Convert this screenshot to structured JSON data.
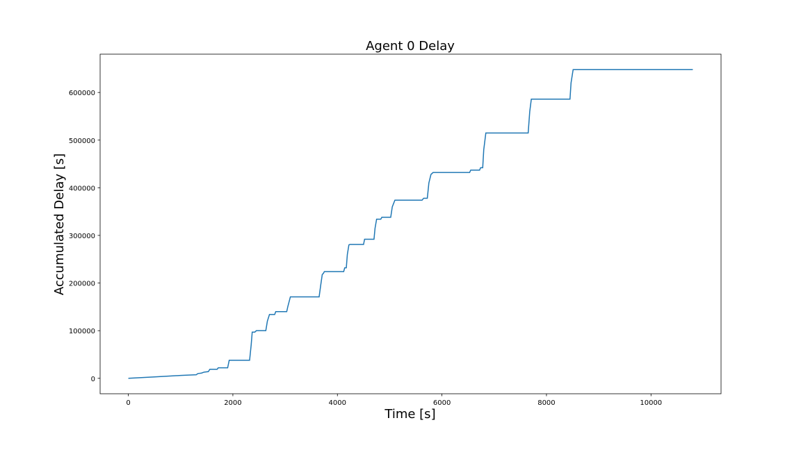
{
  "chart_data": {
    "type": "line",
    "title": "Agent 0 Delay",
    "xlabel": "Time [s]",
    "ylabel": "Accumulated Delay [s]",
    "x": [
      0,
      500,
      1000,
      1300,
      1330,
      1400,
      1450,
      1530,
      1560,
      1700,
      1720,
      1900,
      1930,
      2320,
      2350,
      2370,
      2420,
      2450,
      2630,
      2660,
      2700,
      2800,
      2820,
      3030,
      3050,
      3100,
      3650,
      3680,
      3710,
      3730,
      3750,
      4120,
      4140,
      4170,
      4190,
      4220,
      4240,
      4500,
      4520,
      4700,
      4720,
      4750,
      4830,
      4850,
      5020,
      5050,
      5100,
      5620,
      5650,
      5720,
      5750,
      5790,
      5830,
      6530,
      6550,
      6720,
      6740,
      6780,
      6800,
      6840,
      7650,
      7680,
      7710,
      8450,
      8470,
      8510,
      10800
    ],
    "series": [
      {
        "name": "Agent 0",
        "color": "#1f77b4",
        "values": [
          0,
          3000,
          6000,
          7500,
          10000,
          11000,
          13000,
          14000,
          19000,
          19000,
          22000,
          22000,
          38000,
          38000,
          70000,
          97000,
          97000,
          100000,
          100000,
          120000,
          134000,
          134000,
          140000,
          140000,
          150000,
          171000,
          171000,
          195000,
          218000,
          220000,
          224000,
          224000,
          232000,
          232000,
          260000,
          280000,
          281000,
          281000,
          292000,
          292000,
          315000,
          334000,
          334000,
          338000,
          338000,
          360000,
          374000,
          374000,
          378000,
          378000,
          410000,
          428000,
          432000,
          432000,
          437000,
          437000,
          442000,
          442000,
          480000,
          515000,
          515000,
          560000,
          586000,
          586000,
          620000,
          648000,
          648000
        ]
      }
    ],
    "xlim": [
      -540,
      11340
    ],
    "ylim": [
      -32400,
      680400
    ],
    "xticks": [
      0,
      2000,
      4000,
      6000,
      8000,
      10000
    ],
    "yticks": [
      0,
      100000,
      200000,
      300000,
      400000,
      500000,
      600000
    ]
  }
}
